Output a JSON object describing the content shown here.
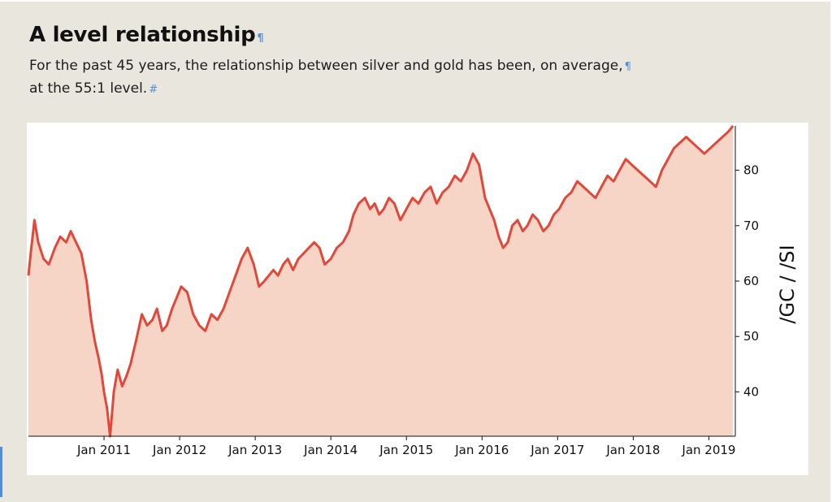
{
  "header": {
    "title": "A level relationship",
    "title_mark": "¶",
    "subtitle_line1": "For the past 45 years, the relationship between silver and gold has been, on average,",
    "subtitle_line1_mark": "¶",
    "subtitle_line2": "at the 55:1 level.",
    "subtitle_line2_mark": "#"
  },
  "colors": {
    "line": "#e2483a",
    "fill": "#f6d4c6",
    "page_background": "#e9e6dd",
    "panel_background": "#ffffff",
    "edit_marks": "#4f8fd9"
  },
  "chart_data": {
    "type": "area",
    "title": "A level relationship",
    "ylabel": "/GC / /SI",
    "xlabel": "",
    "x_tick_labels": [
      "Jan 2011",
      "Jan 2012",
      "Jan 2013",
      "Jan 2014",
      "Jan 2015",
      "Jan 2016",
      "Jan 2017",
      "Jan 2018",
      "Jan 2019"
    ],
    "x_tick_values": [
      2011,
      2012,
      2013,
      2014,
      2015,
      2016,
      2017,
      2018,
      2019
    ],
    "y_ticks": [
      40,
      50,
      60,
      70,
      80
    ],
    "xlim": [
      2010.0,
      2019.35
    ],
    "ylim": [
      32,
      88
    ],
    "y_axis_position": "right",
    "grid": false,
    "legend": "none",
    "series": [
      {
        "x": [
          2010.0,
          2010.03,
          2010.08,
          2010.13,
          2010.2,
          2010.27,
          2010.35,
          2010.42,
          2010.5,
          2010.56,
          2010.63,
          2010.7,
          2010.77,
          2010.83,
          2010.88,
          2010.93,
          2010.97,
          2011.0,
          2011.04,
          2011.08,
          2011.13,
          2011.18,
          2011.24,
          2011.3,
          2011.35,
          2011.42,
          2011.5,
          2011.57,
          2011.64,
          2011.7,
          2011.77,
          2011.83,
          2011.9,
          2011.96,
          2012.02,
          2012.1,
          2012.18,
          2012.26,
          2012.34,
          2012.42,
          2012.5,
          2012.58,
          2012.66,
          2012.74,
          2012.82,
          2012.9,
          2012.98,
          2013.05,
          2013.12,
          2013.18,
          2013.24,
          2013.3,
          2013.37,
          2013.43,
          2013.5,
          2013.57,
          2013.64,
          2013.71,
          2013.78,
          2013.85,
          2013.92,
          2014.0,
          2014.08,
          2014.16,
          2014.24,
          2014.3,
          2014.37,
          2014.45,
          2014.52,
          2014.58,
          2014.64,
          2014.7,
          2014.77,
          2014.84,
          2014.92,
          2015.0,
          2015.08,
          2015.16,
          2015.24,
          2015.32,
          2015.4,
          2015.48,
          2015.56,
          2015.64,
          2015.72,
          2015.8,
          2015.88,
          2015.96,
          2016.04,
          2016.1,
          2016.16,
          2016.22,
          2016.28,
          2016.34,
          2016.4,
          2016.47,
          2016.54,
          2016.6,
          2016.67,
          2016.74,
          2016.81,
          2016.88,
          2016.95,
          2017.02,
          2017.1,
          2017.18,
          2017.26,
          2017.34,
          2017.42,
          2017.5,
          2017.58,
          2017.66,
          2017.74,
          2017.82,
          2017.9,
          2017.98,
          2018.06,
          2018.14,
          2018.22,
          2018.3,
          2018.38,
          2018.46,
          2018.54,
          2018.62,
          2018.7,
          2018.78,
          2018.86,
          2018.94,
          2019.02,
          2019.1,
          2019.18,
          2019.26,
          2019.32
        ],
        "y": [
          61,
          65,
          71,
          67,
          64,
          63,
          66,
          68,
          67,
          69,
          67,
          65,
          60,
          53,
          49,
          46,
          43,
          40,
          37,
          32,
          40,
          44,
          41,
          43,
          45,
          49,
          54,
          52,
          53,
          55,
          51,
          52,
          55,
          57,
          59,
          58,
          54,
          52,
          51,
          54,
          53,
          55,
          58,
          61,
          64,
          66,
          63,
          59,
          60,
          61,
          62,
          61,
          63,
          64,
          62,
          64,
          65,
          66,
          67,
          66,
          63,
          64,
          66,
          67,
          69,
          72,
          74,
          75,
          73,
          74,
          72,
          73,
          75,
          74,
          71,
          73,
          75,
          74,
          76,
          77,
          74,
          76,
          77,
          79,
          78,
          80,
          83,
          81,
          75,
          73,
          71,
          68,
          66,
          67,
          70,
          71,
          69,
          70,
          72,
          71,
          69,
          70,
          72,
          73,
          75,
          76,
          78,
          77,
          76,
          75,
          77,
          79,
          78,
          80,
          82,
          81,
          80,
          79,
          78,
          77,
          80,
          82,
          84,
          85,
          86,
          85,
          84,
          83,
          84,
          85,
          86,
          87,
          88
        ]
      }
    ]
  }
}
